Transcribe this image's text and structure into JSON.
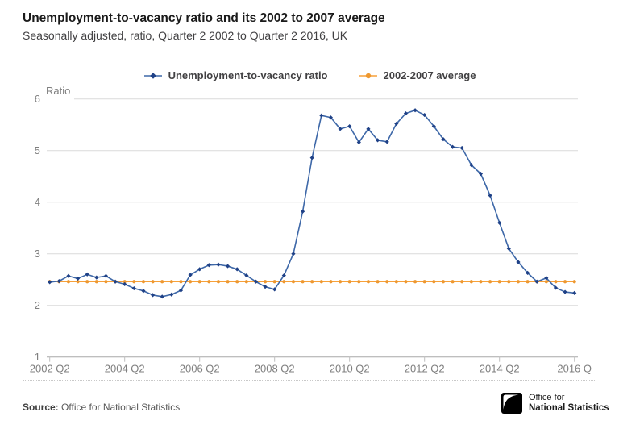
{
  "chart_data": {
    "type": "line",
    "title": "Unemployment-to-vacancy ratio and its 2002 to 2007 average",
    "subtitle": "Seasonally adjusted, ratio, Quarter 2 2002 to Quarter 2 2016, UK",
    "grid": true,
    "legend_position": "top",
    "y_axis": {
      "label": "Ratio",
      "ticks": [
        1,
        2,
        3,
        4,
        5,
        6
      ],
      "range": [
        1,
        6
      ]
    },
    "x_axis": {
      "tick_labels": [
        "2002 Q2",
        "2004 Q2",
        "2006 Q2",
        "2008 Q2",
        "2010 Q2",
        "2012 Q2",
        "2014 Q2",
        "2016 Q"
      ],
      "tick_indices": [
        0,
        8,
        16,
        24,
        32,
        40,
        48,
        56
      ]
    },
    "categories": [
      "2002 Q2",
      "2002 Q3",
      "2002 Q4",
      "2003 Q1",
      "2003 Q2",
      "2003 Q3",
      "2003 Q4",
      "2004 Q1",
      "2004 Q2",
      "2004 Q3",
      "2004 Q4",
      "2005 Q1",
      "2005 Q2",
      "2005 Q3",
      "2005 Q4",
      "2006 Q1",
      "2006 Q2",
      "2006 Q3",
      "2006 Q4",
      "2007 Q1",
      "2007 Q2",
      "2007 Q3",
      "2007 Q4",
      "2008 Q1",
      "2008 Q2",
      "2008 Q3",
      "2008 Q4",
      "2009 Q1",
      "2009 Q2",
      "2009 Q3",
      "2009 Q4",
      "2010 Q1",
      "2010 Q2",
      "2010 Q3",
      "2010 Q4",
      "2011 Q1",
      "2011 Q2",
      "2011 Q3",
      "2011 Q4",
      "2012 Q1",
      "2012 Q2",
      "2012 Q3",
      "2012 Q4",
      "2013 Q1",
      "2013 Q2",
      "2013 Q3",
      "2013 Q4",
      "2014 Q1",
      "2014 Q2",
      "2014 Q3",
      "2014 Q4",
      "2015 Q1",
      "2015 Q2",
      "2015 Q3",
      "2015 Q4",
      "2016 Q1",
      "2016 Q2"
    ],
    "series": [
      {
        "name": "Unemployment-to-vacancy ratio",
        "marker": "diamond",
        "line_color": "#3e68a8",
        "marker_color": "#1f4187",
        "values": [
          2.45,
          2.47,
          2.57,
          2.52,
          2.6,
          2.54,
          2.57,
          2.46,
          2.41,
          2.33,
          2.28,
          2.2,
          2.17,
          2.21,
          2.29,
          2.59,
          2.7,
          2.78,
          2.79,
          2.76,
          2.7,
          2.58,
          2.46,
          2.36,
          2.31,
          2.58,
          3.0,
          3.82,
          4.86,
          5.68,
          5.64,
          5.42,
          5.47,
          5.16,
          5.42,
          5.2,
          5.17,
          5.52,
          5.72,
          5.78,
          5.69,
          5.47,
          5.22,
          5.07,
          5.05,
          4.72,
          4.55,
          4.13,
          3.6,
          3.1,
          2.84,
          2.63,
          2.46,
          2.53,
          2.34,
          2.26,
          2.24
        ]
      },
      {
        "name": "2002-2007 average",
        "marker": "circle",
        "line_color": "#f7a13a",
        "marker_color": "#ee9830",
        "constant_value": 2.46
      }
    ],
    "legend": {
      "items": [
        {
          "label": "Unemployment-to-vacancy ratio"
        },
        {
          "label": "2002-2007 average"
        }
      ]
    },
    "colors": {
      "grid": "#dadada",
      "axis": "#a8a8a8",
      "tick": "#bfbfbf",
      "axis_text": "#7f7f7f"
    }
  },
  "footer": {
    "source_label": "Source:",
    "source_value": "Office for National Statistics",
    "logo": {
      "line1": "Office for",
      "line2": "National Statistics"
    }
  }
}
